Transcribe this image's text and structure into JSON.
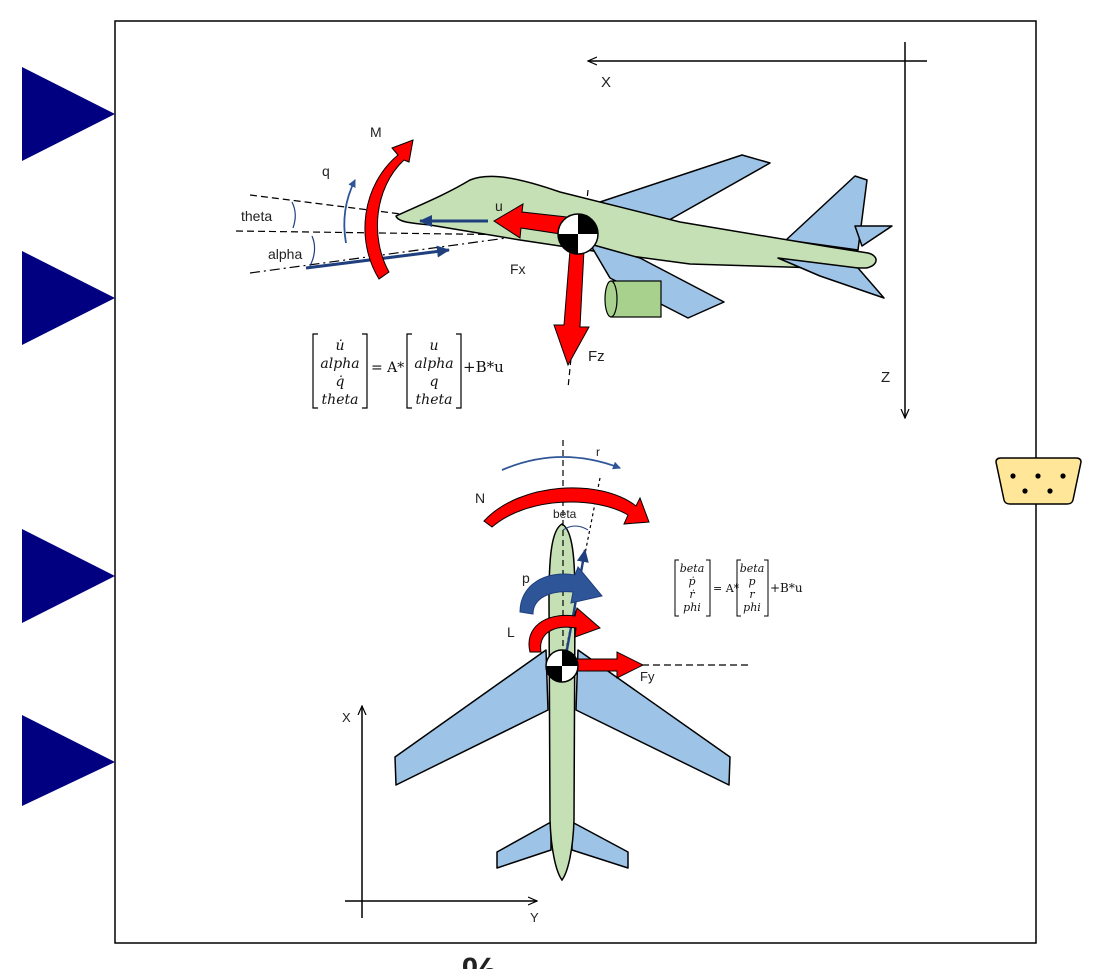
{
  "block": {
    "colors": {
      "port": "#000080",
      "frame": "#000000",
      "body": "#c5e0b4",
      "wing": "#9dc3e6",
      "arrow_red": "#ff0000",
      "arrow_blue": "#1f3f7f",
      "engine": "#a9d18e",
      "connector": "#ffe699"
    },
    "icons": {
      "input_port": "triangle-right-icon",
      "output_port": "connector-icon"
    }
  },
  "longitudinal": {
    "axis_x": "X",
    "axis_z": "Z",
    "label_M": "M",
    "label_q": "q",
    "label_theta": "theta",
    "label_alpha": "alpha",
    "label_u": "u",
    "label_Fx": "Fx",
    "label_Fz": "Fz",
    "equation": {
      "lhs": [
        "u̇",
        "alpha",
        "q̇",
        "theta"
      ],
      "equals": "= A*",
      "rhs": [
        "u",
        "alpha",
        "q",
        "theta"
      ],
      "tail": "+B*u"
    }
  },
  "lateral": {
    "axis_x": "X",
    "axis_y": "Y",
    "label_r": "r",
    "label_N": "N",
    "label_beta": "beta",
    "label_p": "p",
    "label_L": "L",
    "label_Fy": "Fy",
    "equation": {
      "lhs": [
        "beta",
        "ṗ",
        "ṙ",
        "phi"
      ],
      "equals": "= A*",
      "rhs": [
        "beta",
        "p",
        "r",
        "phi"
      ],
      "tail": "+B*u"
    }
  },
  "footer": {
    "percent": "%"
  }
}
